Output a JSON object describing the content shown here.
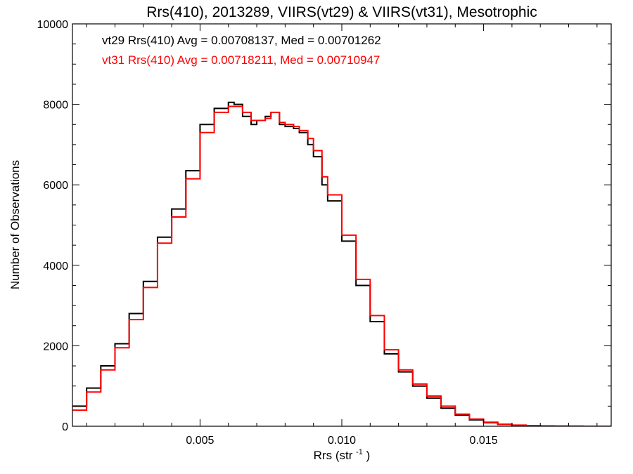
{
  "chart_data": {
    "type": "line",
    "step": true,
    "title": "Rrs(410), 2013289, VIIRS(vt29) & VIIRS(vt31), Mesotrophic",
    "xlabel_base": "Rrs (str",
    "xlabel_sup": "-1",
    "xlabel_close": ")",
    "ylabel": "Number of Observations",
    "xlim": [
      0.0005,
      0.0195
    ],
    "ylim": [
      0,
      10000
    ],
    "x_ticks": [
      0.005,
      0.01,
      0.015
    ],
    "x_tick_labels": [
      "0.005",
      "0.010",
      "0.015"
    ],
    "y_ticks": [
      0,
      2000,
      4000,
      6000,
      8000,
      10000
    ],
    "y_tick_labels": [
      "0",
      "2000",
      "4000",
      "6000",
      "8000",
      "10000"
    ],
    "grid": false,
    "legend_position": "top-left",
    "annotations": [
      {
        "text": "vt29 Rrs(410) Avg = 0.00708137, Med = 0.00701262",
        "color": "#000000"
      },
      {
        "text": "vt31 Rrs(410) Avg = 0.00718211, Med = 0.00710947",
        "color": "#ff0000"
      }
    ],
    "series": [
      {
        "color": "#000000",
        "x": [
          0.0005,
          0.001,
          0.0015,
          0.002,
          0.0025,
          0.003,
          0.0035,
          0.004,
          0.0045,
          0.005,
          0.0055,
          0.006,
          0.0062,
          0.0065,
          0.0068,
          0.007,
          0.0073,
          0.0075,
          0.0078,
          0.008,
          0.0083,
          0.0085,
          0.0088,
          0.009,
          0.0093,
          0.0095,
          0.01,
          0.0105,
          0.011,
          0.0115,
          0.012,
          0.0125,
          0.013,
          0.0135,
          0.014,
          0.0145,
          0.015,
          0.0155,
          0.016,
          0.0165,
          0.017,
          0.0175,
          0.018,
          0.0185,
          0.019,
          0.0195
        ],
        "y": [
          500,
          950,
          1500,
          2050,
          2800,
          3600,
          4700,
          5400,
          6350,
          7500,
          7900,
          8050,
          8000,
          7700,
          7500,
          7600,
          7700,
          7800,
          7500,
          7450,
          7400,
          7300,
          7000,
          6700,
          6000,
          5600,
          4600,
          3500,
          2600,
          1800,
          1350,
          1000,
          700,
          450,
          280,
          160,
          90,
          45,
          25,
          12,
          6,
          3,
          2,
          1,
          0,
          0
        ]
      },
      {
        "color": "#ff0000",
        "x": [
          0.0005,
          0.001,
          0.0015,
          0.002,
          0.0025,
          0.003,
          0.0035,
          0.004,
          0.0045,
          0.005,
          0.0055,
          0.006,
          0.0062,
          0.0065,
          0.0068,
          0.007,
          0.0073,
          0.0075,
          0.0078,
          0.008,
          0.0083,
          0.0085,
          0.0088,
          0.009,
          0.0093,
          0.0095,
          0.01,
          0.0105,
          0.011,
          0.0115,
          0.012,
          0.0125,
          0.013,
          0.0135,
          0.014,
          0.0145,
          0.015,
          0.0155,
          0.016,
          0.0165,
          0.017,
          0.0175,
          0.018,
          0.0185,
          0.019,
          0.0195
        ],
        "y": [
          400,
          850,
          1400,
          1950,
          2650,
          3450,
          4550,
          5200,
          6150,
          7300,
          7800,
          7950,
          7950,
          7800,
          7600,
          7600,
          7650,
          7800,
          7550,
          7500,
          7450,
          7350,
          7150,
          6850,
          6200,
          5750,
          4750,
          3650,
          2750,
          1900,
          1400,
          1050,
          750,
          500,
          300,
          180,
          100,
          50,
          28,
          14,
          7,
          4,
          2,
          1,
          0,
          0
        ]
      }
    ]
  }
}
